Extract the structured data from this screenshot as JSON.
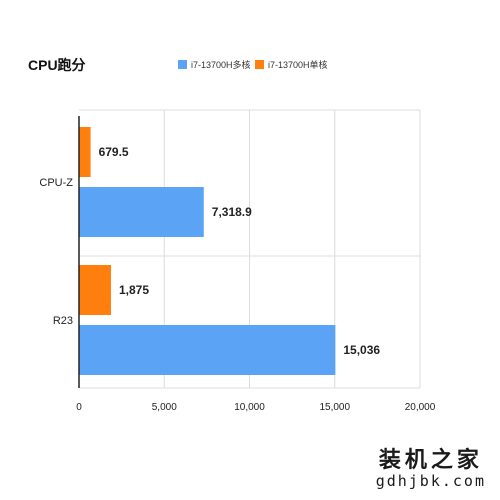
{
  "chart_data": {
    "type": "bar",
    "orientation": "horizontal",
    "title": "CPU跑分",
    "categories": [
      "CPU-Z",
      "R23"
    ],
    "series": [
      {
        "name": "i7-13700H单核",
        "color": "#ff7f0e",
        "values": [
          679.5,
          1875
        ],
        "labels": [
          "679.5",
          "1,875"
        ]
      },
      {
        "name": "i7-13700H多核",
        "color": "#5ba3f5",
        "values": [
          7318.9,
          15036
        ],
        "labels": [
          "7,318.9",
          "15,036"
        ]
      }
    ],
    "legend_order": [
      1,
      0
    ],
    "legend_position": "top",
    "xlim": [
      0,
      20000
    ],
    "xticks": [
      0,
      5000,
      10000,
      15000,
      20000
    ],
    "xtick_labels": [
      "0",
      "5,000",
      "10,000",
      "15,000",
      "20,000"
    ],
    "xlabel": "",
    "ylabel": "",
    "grid": true
  },
  "watermark": {
    "text": "装机之家",
    "url": "gdhjbk.com"
  }
}
